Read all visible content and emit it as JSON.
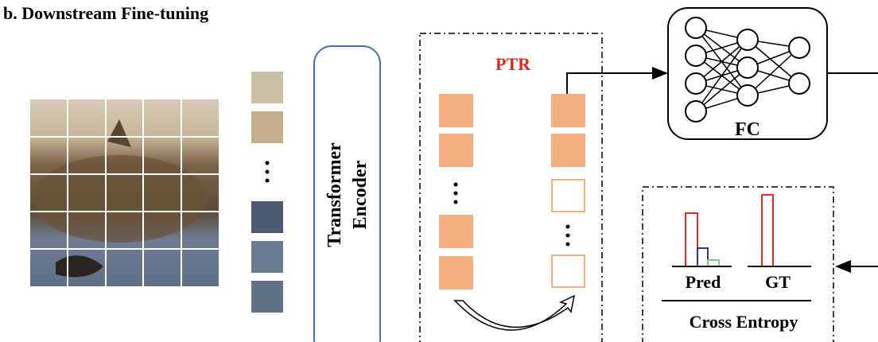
{
  "header": {
    "title": "b. Downstream Fine-tuning"
  },
  "encoder": {
    "lines": [
      "Transformer",
      "Encoder"
    ]
  },
  "ptr": {
    "label": "PTR"
  },
  "fc": {
    "label": "FC"
  },
  "loss": {
    "pred_label": "Pred",
    "gt_label": "GT",
    "label": "Cross Entropy"
  }
}
